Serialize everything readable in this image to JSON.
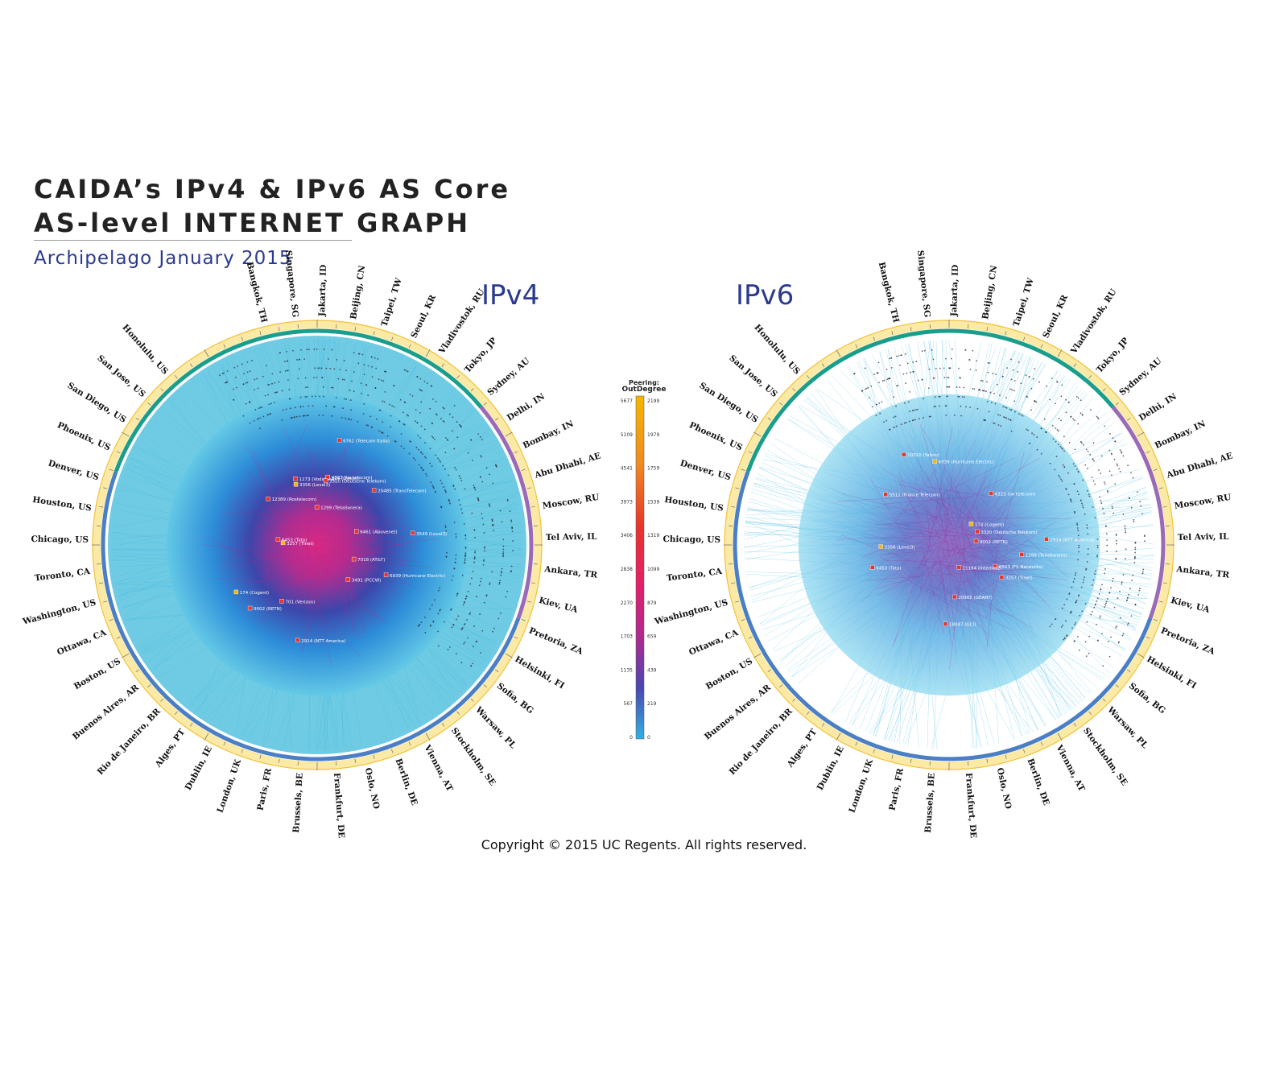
{
  "title": {
    "line1": "CAIDA’s IPv4 & IPv6 AS Core",
    "line2": "AS-level INTERNET GRAPH",
    "subtitle": "Archipelago January 2015"
  },
  "panels": [
    {
      "label": "IPv4"
    },
    {
      "label": "IPv6"
    }
  ],
  "legend": {
    "title_line1": "Peering:",
    "title_line2": "OutDegree",
    "left_ticks": [
      "5677",
      "5109",
      "4541",
      "3973",
      "3406",
      "2838",
      "2270",
      "1703",
      "1135",
      "567",
      "0"
    ],
    "right_ticks": [
      "2199",
      "1979",
      "1759",
      "1539",
      "1319",
      "1099",
      "879",
      "659",
      "439",
      "219",
      "0"
    ],
    "colors": [
      "#f5b800",
      "#f39222",
      "#ef6a2a",
      "#e8342a",
      "#e31f5a",
      "#d0217f",
      "#9a2a9b",
      "#5a3aa8",
      "#3c4fb8",
      "#2c7fd0",
      "#33b8e0"
    ]
  },
  "cities_ipv4": [
    "Bangkok, TH",
    "Singapore, SG",
    "Jakarta, ID",
    "Beijing, CN",
    "Taipei, TW",
    "Seoul, KR",
    "Vladivostok, RU",
    "Tokyo, JP",
    "Sydney, AU",
    "Delhi, IN",
    "Bombay, IN",
    "Abu Dhabi, AE",
    "Moscow, RU",
    "Tel Aviv, IL",
    "Ankara, TR",
    "Kiev, UA",
    "Pretoria, ZA",
    "Helsinki, FI",
    "Sofia, BG",
    "Warsaw, PL",
    "Stockholm, SE",
    "Vienna, AT",
    "Berlin, DE",
    "Oslo, NO",
    "Frankfurt, DE",
    "Brussels, BE",
    "Paris, FR",
    "London, UK",
    "Dublin, IE",
    "Alges, PT",
    "Rio de Janeiro, BR",
    "Buenos Aires, AR",
    "Boston, US",
    "Ottawa, CA",
    "Washington, US",
    "Toronto, CA",
    "Chicago, US",
    "Houston, US",
    "Denver, US",
    "Phoenix, US",
    "San Diego, US",
    "San Jose, US",
    "Honolulu, US"
  ],
  "as_labels_ipv4": [
    "174 (Cogent)",
    "3356 (Level3)",
    "3257 (Tinet)",
    "1299 (TeliaSonera)",
    "6939 (Hurricane Electric)",
    "2914 (NTT America)",
    "6453 (Tata)",
    "3549 (Level3)",
    "9002 (RETN)",
    "7018 (AT&T)",
    "209 (Qwest)",
    "3491 (PCCW)",
    "1273 (Vodafone)",
    "6762 (Telecom Italia)",
    "20485 (TransTelecom)",
    "4323 (tw telecom)",
    "701 (Verizon)",
    "6461 (Abovenet)",
    "12389 (Rostelecom)",
    "3320 (Deutsche Telekom)"
  ],
  "as_labels_ipv6": [
    "6939 (Hurricane Electric)",
    "174 (Cogent)",
    "3356 (Level3)",
    "1299 (TeliaSonera)",
    "2914 (NTT America)",
    "6453 (Tata)",
    "3257 (Tinet)",
    "9002 (RETN)",
    "8503 (FX Networks)",
    "18047 (GCI)",
    "11164 (Internet2)",
    "10310 (Yahoo)",
    "4323 (tw telecom)",
    "3320 (Deutsche Telekom)",
    "5511 (France Telecom)",
    "20965 (GEANT)"
  ],
  "copyright": "Copyright © 2015 UC Regents. All rights reserved."
}
